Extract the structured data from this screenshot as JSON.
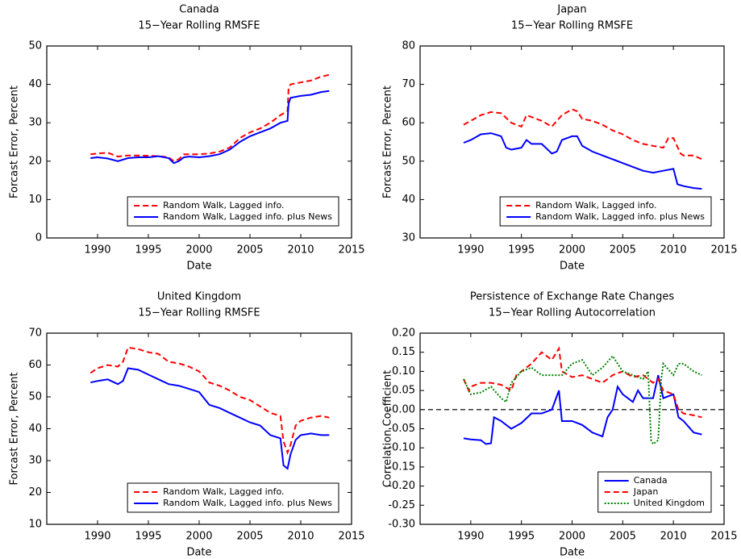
{
  "chart_data": [
    {
      "type": "line",
      "title": "Canada",
      "subtitle": "15−Year Rolling RMSFE",
      "x_label": "Date",
      "y_label": "Forcast Error, Percent",
      "xlim": [
        1985,
        2015
      ],
      "xticks": [
        1990,
        1995,
        2000,
        2005,
        2010,
        2015
      ],
      "ylim": [
        0,
        50
      ],
      "yticks": [
        0,
        10,
        20,
        30,
        40,
        50
      ],
      "legend": "lower right",
      "series": [
        {
          "name": "Random Walk, Lagged info.",
          "color": "#ff0000",
          "style": "dashed",
          "x": [
            1989.3,
            1990,
            1991,
            1992,
            1993,
            1994,
            1995,
            1996,
            1997,
            1997.5,
            1998,
            1998.5,
            1999,
            2000,
            2001,
            2002,
            2003,
            2004,
            2005,
            2006,
            2007,
            2008,
            2008.7,
            2008.8,
            2009,
            2010,
            2011,
            2012,
            2012.8
          ],
          "values": [
            21.8,
            22,
            22.2,
            21.2,
            21.5,
            21.5,
            21.4,
            21.3,
            21,
            20,
            20.5,
            21.8,
            21.8,
            21.8,
            22,
            22.5,
            23.5,
            26,
            27.5,
            28.5,
            30,
            32,
            33,
            39,
            40,
            40.5,
            41,
            42,
            42.5
          ]
        },
        {
          "name": "Random Walk, Lagged info. plus News",
          "color": "#0000ff",
          "style": "solid",
          "x": [
            1989.3,
            1990,
            1991,
            1992,
            1993,
            1994,
            1995,
            1996,
            1997,
            1997.5,
            1998,
            1998.5,
            1999,
            2000,
            2001,
            2002,
            2003,
            2004,
            2005,
            2006,
            2007,
            2008,
            2008.7,
            2008.8,
            2009,
            2010,
            2011,
            2012,
            2012.8
          ],
          "values": [
            20.8,
            21,
            20.7,
            20,
            20.8,
            21,
            21,
            21.3,
            20.8,
            19.5,
            20,
            21,
            21.2,
            21,
            21.3,
            21.8,
            23,
            25,
            26.5,
            27.5,
            28.5,
            30,
            30.5,
            35,
            36.5,
            37,
            37.3,
            38,
            38.3
          ]
        }
      ]
    },
    {
      "type": "line",
      "title": "Japan",
      "subtitle": "15−Year Rolling RMSFE",
      "x_label": "Date",
      "y_label": "Forcast Error, Percent",
      "xlim": [
        1985,
        2015
      ],
      "xticks": [
        1990,
        1995,
        2000,
        2005,
        2010,
        2015
      ],
      "ylim": [
        30,
        80
      ],
      "yticks": [
        30,
        40,
        50,
        60,
        70,
        80
      ],
      "legend": "lower right",
      "series": [
        {
          "name": "Random Walk, Lagged info.",
          "color": "#ff0000",
          "style": "dashed",
          "x": [
            1989.3,
            1990,
            1991,
            1992,
            1993,
            1994,
            1995,
            1995.5,
            1996,
            1997,
            1998,
            1998.5,
            1999,
            2000,
            2000.5,
            2001,
            2002,
            2003,
            2004,
            2005,
            2006,
            2007,
            2008,
            2009,
            2009.5,
            2010,
            2010.7,
            2011,
            2012,
            2012.8
          ],
          "values": [
            59.5,
            60.5,
            62,
            62.8,
            62.5,
            60,
            59,
            62,
            61.5,
            60.5,
            59,
            60.5,
            62,
            63.5,
            63,
            61,
            60.5,
            59.5,
            58,
            57,
            55.5,
            54.5,
            54,
            53.5,
            56,
            56,
            52,
            51.5,
            51.5,
            50.5
          ]
        },
        {
          "name": "Random Walk, Lagged info. plus News",
          "color": "#0000ff",
          "style": "solid",
          "x": [
            1989.3,
            1990,
            1991,
            1992,
            1993,
            1993.5,
            1994,
            1995,
            1995.5,
            1996,
            1997,
            1998,
            1998.5,
            1999,
            2000,
            2000.5,
            2001,
            2002,
            2003,
            2004,
            2005,
            2006,
            2007,
            2008,
            2009,
            2010,
            2010.4,
            2011,
            2012,
            2012.8
          ],
          "values": [
            54.8,
            55.5,
            57,
            57.3,
            56.5,
            53.5,
            53,
            53.5,
            55.5,
            54.5,
            54.5,
            52,
            52.5,
            55.5,
            56.5,
            56.5,
            54,
            52.5,
            51.5,
            50.5,
            49.5,
            48.5,
            47.5,
            47,
            47.5,
            48,
            44,
            43.5,
            43,
            42.8
          ]
        }
      ]
    },
    {
      "type": "line",
      "title": "United Kingdom",
      "subtitle": "15−Year Rolling RMSFE",
      "x_label": "Date",
      "y_label": "Forcast Error, Percent",
      "xlim": [
        1985,
        2015
      ],
      "xticks": [
        1990,
        1995,
        2000,
        2005,
        2010,
        2015
      ],
      "ylim": [
        10,
        70
      ],
      "yticks": [
        10,
        20,
        30,
        40,
        50,
        60,
        70
      ],
      "legend": "lower right",
      "series": [
        {
          "name": "Random Walk, Lagged info.",
          "color": "#ff0000",
          "style": "dashed",
          "x": [
            1989.3,
            1990,
            1991,
            1992,
            1992.5,
            1993,
            1994,
            1995,
            1996,
            1997,
            1998,
            1999,
            2000,
            2001,
            2002,
            2003,
            2004,
            2005,
            2006,
            2007,
            2008,
            2008.3,
            2008.7,
            2009,
            2009.5,
            2010,
            2011,
            2012,
            2012.8
          ],
          "values": [
            57.5,
            59,
            60,
            59.5,
            61,
            65.5,
            65,
            64,
            63.5,
            61,
            60.5,
            59.5,
            58,
            54.5,
            53.5,
            52,
            50,
            49,
            47,
            45,
            44,
            36,
            32.5,
            35,
            41,
            42.5,
            43.5,
            44,
            43.5
          ]
        },
        {
          "name": "Random Walk, Lagged info. plus News",
          "color": "#0000ff",
          "style": "solid",
          "x": [
            1989.3,
            1990,
            1991,
            1992,
            1992.5,
            1993,
            1994,
            1995,
            1996,
            1997,
            1998,
            1999,
            2000,
            2001,
            2002,
            2003,
            2004,
            2005,
            2006,
            2007,
            2008,
            2008.3,
            2008.7,
            2009,
            2009.5,
            2010,
            2011,
            2012,
            2012.8
          ],
          "values": [
            54.5,
            55,
            55.5,
            54,
            55,
            59,
            58.5,
            57,
            55.5,
            54,
            53.5,
            52.5,
            51.5,
            47.5,
            46.5,
            45,
            43.5,
            42,
            41,
            38,
            37,
            28.5,
            27.5,
            32,
            36.5,
            38,
            38.5,
            38,
            38
          ]
        }
      ]
    },
    {
      "type": "line",
      "title": "Persistence of Exchange Rate Changes",
      "subtitle": "15−Year Rolling Autocorrelation",
      "x_label": "Date",
      "y_label": "Correlation Coefficient",
      "xlim": [
        1985,
        2015
      ],
      "xticks": [
        1990,
        1995,
        2000,
        2005,
        2010,
        2015
      ],
      "ylim": [
        -0.3,
        0.2
      ],
      "yticks": [
        {
          "value": 0.2,
          "label": "0.20"
        },
        {
          "value": 0.15,
          "label": "0.15"
        },
        {
          "value": 0.1,
          "label": "0.10"
        },
        {
          "value": 0.05,
          "label": "0.05"
        },
        {
          "value": 0,
          "label": "-0.00"
        },
        {
          "value": -0.05,
          "label": "-0.05"
        },
        {
          "value": -0.1,
          "label": "-0.10"
        },
        {
          "value": -0.15,
          "label": "-0.15"
        },
        {
          "value": -0.2,
          "label": "-0.20"
        },
        {
          "value": -0.25,
          "label": "-0.25"
        },
        {
          "value": -0.3,
          "label": "-0.30"
        }
      ],
      "reference_line": 0,
      "legend": "lower right",
      "series": [
        {
          "name": "Canada",
          "color": "#0000ff",
          "style": "solid",
          "x": [
            1989.3,
            1990,
            1991,
            1991.5,
            1992,
            1992.3,
            1993,
            1994,
            1995,
            1996,
            1997,
            1998,
            1998.7,
            1999,
            2000,
            2001,
            2002,
            2003,
            2003.5,
            2004,
            2004.5,
            2005,
            2006,
            2006.5,
            2007,
            2008,
            2008.5,
            2009,
            2010,
            2010.5,
            2011,
            2012,
            2012.8
          ],
          "values": [
            -0.075,
            -0.078,
            -0.08,
            -0.09,
            -0.088,
            -0.02,
            -0.03,
            -0.05,
            -0.035,
            -0.01,
            -0.01,
            0,
            0.05,
            -0.03,
            -0.03,
            -0.04,
            -0.06,
            -0.07,
            -0.02,
            0,
            0.06,
            0.04,
            0.02,
            0.05,
            0.03,
            0.03,
            0.09,
            0.03,
            0.04,
            -0.02,
            -0.03,
            -0.06,
            -0.065
          ]
        },
        {
          "name": "Japan",
          "color": "#ff0000",
          "style": "dashed",
          "x": [
            1989.3,
            1989.8,
            1990,
            1991,
            1992,
            1993,
            1994,
            1994.5,
            1995,
            1996,
            1997,
            1998,
            1998.7,
            1999,
            2000,
            2001,
            2002,
            2003,
            2004,
            2005,
            2006,
            2007,
            2008,
            2008.5,
            2009,
            2010,
            2010.5,
            2011,
            2012,
            2012.8
          ],
          "values": [
            0.08,
            0.05,
            0.06,
            0.07,
            0.07,
            0.065,
            0.05,
            0.09,
            0.1,
            0.12,
            0.15,
            0.13,
            0.16,
            0.1,
            0.085,
            0.09,
            0.08,
            0.07,
            0.09,
            0.1,
            0.085,
            0.09,
            0.07,
            0.08,
            0.05,
            0.04,
            0,
            -0.01,
            -0.015,
            -0.02
          ]
        },
        {
          "name": "United Kingdom",
          "color": "#008000",
          "style": "dotted",
          "x": [
            1989.3,
            1990,
            1991,
            1992,
            1993,
            1993.5,
            1994,
            1995,
            1996,
            1997,
            1998,
            1999,
            2000,
            2001,
            2002,
            2003,
            2004,
            2005,
            2006,
            2007,
            2007.5,
            2007.8,
            2008,
            2008.5,
            2008.8,
            2009,
            2010,
            2010.5,
            2011,
            2012,
            2012.8
          ],
          "values": [
            0.08,
            0.04,
            0.045,
            0.06,
            0.03,
            0.02,
            0.07,
            0.1,
            0.11,
            0.09,
            0.09,
            0.09,
            0.12,
            0.13,
            0.09,
            0.11,
            0.14,
            0.1,
            0.09,
            0.08,
            0.1,
            -0.08,
            -0.09,
            -0.08,
            0.08,
            0.12,
            0.09,
            0.12,
            0.12,
            0.1,
            0.09
          ]
        }
      ]
    }
  ]
}
